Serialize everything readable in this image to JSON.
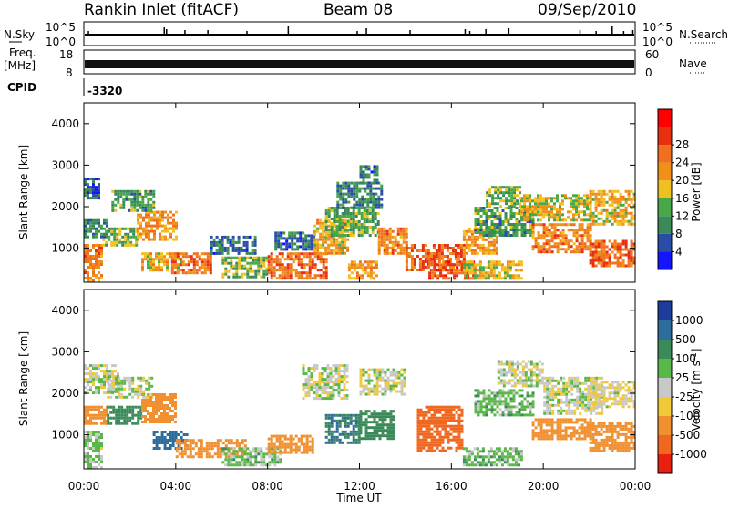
{
  "header": {
    "station": "Rankin Inlet (fitACF)",
    "beam": "Beam 08",
    "date": "09/Sep/2010"
  },
  "nsky": {
    "label": "N.Sky",
    "tick_top": "10^5",
    "tick_bottom": "10^0",
    "right_label": "N.Search",
    "right_tick_top": "10^5",
    "right_tick_bottom": "10^0",
    "spikes": [
      [
        0.2,
        4
      ],
      [
        3.5,
        8
      ],
      [
        3.6,
        6
      ],
      [
        4.4,
        5
      ],
      [
        5.4,
        5
      ],
      [
        7.1,
        4
      ],
      [
        8.9,
        9
      ],
      [
        11.9,
        4
      ],
      [
        12.3,
        7
      ],
      [
        14.2,
        5
      ],
      [
        16.6,
        6
      ],
      [
        16.8,
        4
      ],
      [
        17.5,
        6
      ],
      [
        18.5,
        7
      ],
      [
        21.6,
        5
      ],
      [
        22.3,
        4
      ],
      [
        23.0,
        9
      ],
      [
        23.5,
        4
      ],
      [
        23.9,
        5
      ]
    ]
  },
  "freq": {
    "label_line1": "Freq.",
    "label_line2": "[MHz]",
    "tick_top": "18",
    "tick_bottom": "8",
    "right_label": "Nave",
    "right_tick_top": "60",
    "right_tick_bottom": "0"
  },
  "cpid": {
    "label": "CPID",
    "value": "-3320"
  },
  "time_axis": {
    "label": "Time UT",
    "ticks": [
      "00:00",
      "04:00",
      "08:00",
      "12:00",
      "16:00",
      "20:00",
      "00:00"
    ],
    "hours": [
      0,
      4,
      8,
      12,
      16,
      20,
      24
    ]
  },
  "range_axis": {
    "label": "Slant Range [km]",
    "ticks": [
      1000,
      2000,
      3000,
      4000
    ],
    "ylim": [
      180,
      4500
    ]
  },
  "power_scale": {
    "label": "Power [dB]",
    "ticks": [
      "4",
      "8",
      "12",
      "16",
      "20",
      "24",
      "28"
    ],
    "colors": [
      "#1414ff",
      "#2a4ea8",
      "#3a8a58",
      "#48a848",
      "#f0c020",
      "#f09018",
      "#f07020",
      "#e83010",
      "#ff0000"
    ]
  },
  "velocity_scale": {
    "label": "Velocity [m s",
    "label_sup": "-1",
    "label_end": "]",
    "ticks": [
      "1000",
      "500",
      "100",
      "25",
      "-25",
      "-100",
      "-500",
      "-1000"
    ],
    "colors": [
      "#1e3c9c",
      "#2e6c9c",
      "#3c8a5a",
      "#5ab84a",
      "#c8c8c8",
      "#f0c838",
      "#f09030",
      "#f06820",
      "#e82010"
    ]
  },
  "chart_data": [
    {
      "type": "heatmap",
      "title": "",
      "xlabel": "Time UT",
      "ylabel": "Slant Range [km]",
      "xlim": [
        0,
        24
      ],
      "ylim": [
        180,
        4500
      ],
      "colorbar": "Power [dB]",
      "blobs": [
        {
          "t0": 0.0,
          "t1": 0.7,
          "r0": 2200,
          "r1": 2700,
          "v": 6
        },
        {
          "t0": 0.0,
          "t1": 1.0,
          "r0": 1300,
          "r1": 1700,
          "v": 10
        },
        {
          "t0": 0.0,
          "t1": 0.8,
          "r0": 200,
          "r1": 1100,
          "v": 24
        },
        {
          "t0": 0.8,
          "t1": 2.3,
          "r0": 1100,
          "r1": 1500,
          "v": 14
        },
        {
          "t0": 2.3,
          "t1": 4.0,
          "r0": 1200,
          "r1": 1900,
          "v": 22
        },
        {
          "t0": 1.2,
          "t1": 3.0,
          "r0": 1900,
          "r1": 2400,
          "v": 12
        },
        {
          "t0": 2.5,
          "t1": 4.2,
          "r0": 500,
          "r1": 900,
          "v": 20
        },
        {
          "t0": 3.8,
          "t1": 5.5,
          "r0": 400,
          "r1": 900,
          "v": 26
        },
        {
          "t0": 5.5,
          "t1": 7.5,
          "r0": 900,
          "r1": 1300,
          "v": 8
        },
        {
          "t0": 6.0,
          "t1": 8.0,
          "r0": 300,
          "r1": 800,
          "v": 14
        },
        {
          "t0": 8.0,
          "t1": 10.5,
          "r0": 300,
          "r1": 900,
          "v": 26
        },
        {
          "t0": 8.3,
          "t1": 10.0,
          "r0": 1000,
          "r1": 1400,
          "v": 8
        },
        {
          "t0": 10.0,
          "t1": 11.5,
          "r0": 900,
          "r1": 1700,
          "v": 20
        },
        {
          "t0": 10.5,
          "t1": 12.8,
          "r0": 1300,
          "r1": 2000,
          "v": 14
        },
        {
          "t0": 11.0,
          "t1": 13.0,
          "r0": 2000,
          "r1": 2600,
          "v": 10
        },
        {
          "t0": 12.0,
          "t1": 12.8,
          "r0": 2600,
          "r1": 3000,
          "v": 8
        },
        {
          "t0": 11.5,
          "t1": 12.8,
          "r0": 300,
          "r1": 700,
          "v": 22
        },
        {
          "t0": 12.8,
          "t1": 14.0,
          "r0": 900,
          "r1": 1500,
          "v": 24
        },
        {
          "t0": 14.0,
          "t1": 16.5,
          "r0": 500,
          "r1": 1100,
          "v": 27
        },
        {
          "t0": 15.0,
          "t1": 17.0,
          "r0": 300,
          "r1": 700,
          "v": 28
        },
        {
          "t0": 16.5,
          "t1": 19.0,
          "r0": 300,
          "r1": 700,
          "v": 18
        },
        {
          "t0": 16.5,
          "t1": 18.0,
          "r0": 900,
          "r1": 1500,
          "v": 22
        },
        {
          "t0": 17.0,
          "t1": 19.5,
          "r0": 1300,
          "r1": 2000,
          "v": 12
        },
        {
          "t0": 19.5,
          "t1": 22.0,
          "r0": 900,
          "r1": 1600,
          "v": 24
        },
        {
          "t0": 19.0,
          "t1": 22.0,
          "r0": 1700,
          "r1": 2300,
          "v": 18
        },
        {
          "t0": 22.0,
          "t1": 24.0,
          "r0": 600,
          "r1": 1200,
          "v": 27
        },
        {
          "t0": 22.0,
          "t1": 24.0,
          "r0": 1600,
          "r1": 2400,
          "v": 20
        },
        {
          "t0": 17.5,
          "t1": 19.0,
          "r0": 2000,
          "r1": 2500,
          "v": 14
        }
      ]
    },
    {
      "type": "heatmap",
      "title": "",
      "xlabel": "Time UT",
      "ylabel": "Slant Range [km]",
      "xlim": [
        0,
        24
      ],
      "ylim": [
        180,
        4500
      ],
      "colorbar": "Velocity [m s-1]",
      "blobs": [
        {
          "t0": 0.0,
          "t1": 1.5,
          "r0": 2000,
          "r1": 2700,
          "v": 0
        },
        {
          "t0": 0.0,
          "t1": 1.0,
          "r0": 1300,
          "r1": 1700,
          "v": -300
        },
        {
          "t0": 0.0,
          "t1": 0.8,
          "r0": 200,
          "r1": 1100,
          "v": 30
        },
        {
          "t0": 1.0,
          "t1": 2.5,
          "r0": 1300,
          "r1": 1700,
          "v": 400
        },
        {
          "t0": 1.0,
          "t1": 3.0,
          "r0": 1900,
          "r1": 2400,
          "v": 0
        },
        {
          "t0": 2.5,
          "t1": 4.0,
          "r0": 1300,
          "r1": 2000,
          "v": -400
        },
        {
          "t0": 3.0,
          "t1": 4.5,
          "r0": 700,
          "r1": 1100,
          "v": 600
        },
        {
          "t0": 4.0,
          "t1": 7.0,
          "r0": 500,
          "r1": 900,
          "v": -200
        },
        {
          "t0": 6.0,
          "t1": 8.5,
          "r0": 300,
          "r1": 700,
          "v": 50
        },
        {
          "t0": 8.0,
          "t1": 10.0,
          "r0": 600,
          "r1": 1000,
          "v": -400
        },
        {
          "t0": 9.5,
          "t1": 11.5,
          "r0": 1900,
          "r1": 2700,
          "v": 0
        },
        {
          "t0": 10.5,
          "t1": 12.0,
          "r0": 800,
          "r1": 1500,
          "v": 500
        },
        {
          "t0": 12.0,
          "t1": 13.5,
          "r0": 900,
          "r1": 1600,
          "v": 300
        },
        {
          "t0": 12.0,
          "t1": 14.0,
          "r0": 2000,
          "r1": 2600,
          "v": 0
        },
        {
          "t0": 14.5,
          "t1": 16.5,
          "r0": 600,
          "r1": 1700,
          "v": -700
        },
        {
          "t0": 16.5,
          "t1": 19.0,
          "r0": 300,
          "r1": 700,
          "v": 60
        },
        {
          "t0": 17.0,
          "t1": 19.5,
          "r0": 1500,
          "r1": 2100,
          "v": 60
        },
        {
          "t0": 18.0,
          "t1": 20.0,
          "r0": 2200,
          "r1": 2800,
          "v": 0
        },
        {
          "t0": 19.5,
          "t1": 22.0,
          "r0": 900,
          "r1": 1400,
          "v": -300
        },
        {
          "t0": 20.0,
          "t1": 22.5,
          "r0": 1500,
          "r1": 2400,
          "v": 0
        },
        {
          "t0": 22.0,
          "t1": 24.0,
          "r0": 600,
          "r1": 1300,
          "v": -200
        },
        {
          "t0": 22.0,
          "t1": 24.0,
          "r0": 1700,
          "r1": 2300,
          "v": -30
        }
      ]
    }
  ]
}
